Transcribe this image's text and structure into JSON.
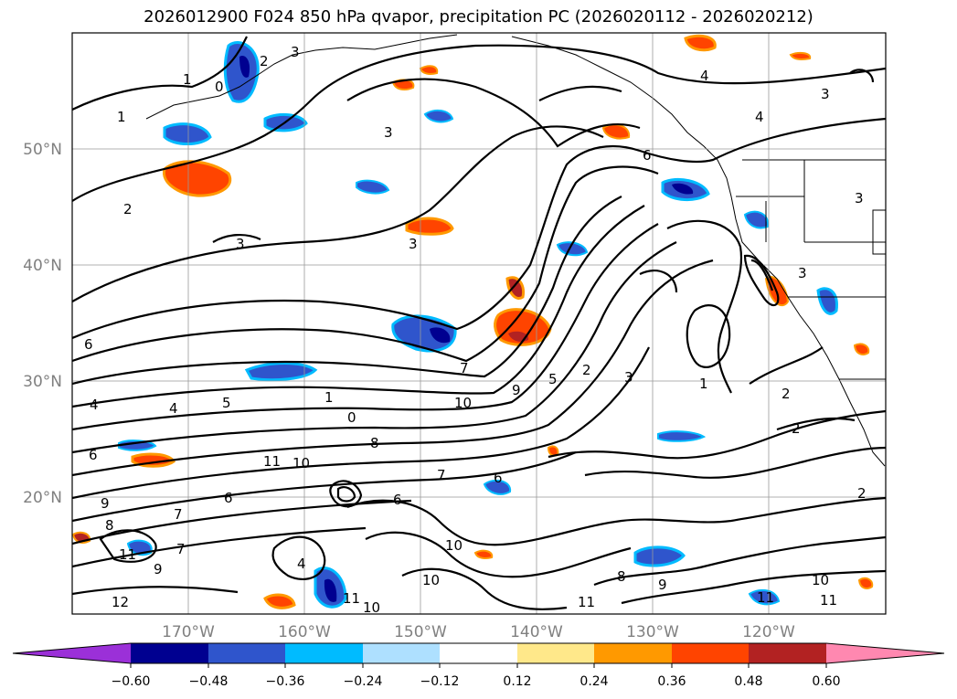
{
  "title": "2026012900 F024 850 hPa qvapor, precipitation PC (2026020112 - 2026020212)",
  "lat_ticks": [
    "50°N",
    "40°N",
    "30°N",
    "20°N"
  ],
  "lon_ticks": [
    "170°W",
    "160°W",
    "150°W",
    "140°W",
    "130°W",
    "120°W"
  ],
  "contour_levels": [
    "0",
    "1",
    "2",
    "3",
    "4",
    "5",
    "6",
    "7",
    "8",
    "9",
    "10",
    "11",
    "12"
  ],
  "colorbar": {
    "ticks": [
      "−0.60",
      "−0.48",
      "−0.36",
      "−0.24",
      "−0.12",
      "0.12",
      "0.24",
      "0.36",
      "0.48",
      "0.60"
    ],
    "colors": [
      "#9b30d8",
      "#000090",
      "#2f55cc",
      "#00bbff",
      "#aee0ff",
      "#ffffff",
      "#ffe88a",
      "#ff9900",
      "#ff4400",
      "#b22222",
      "#ff88b0"
    ]
  }
}
